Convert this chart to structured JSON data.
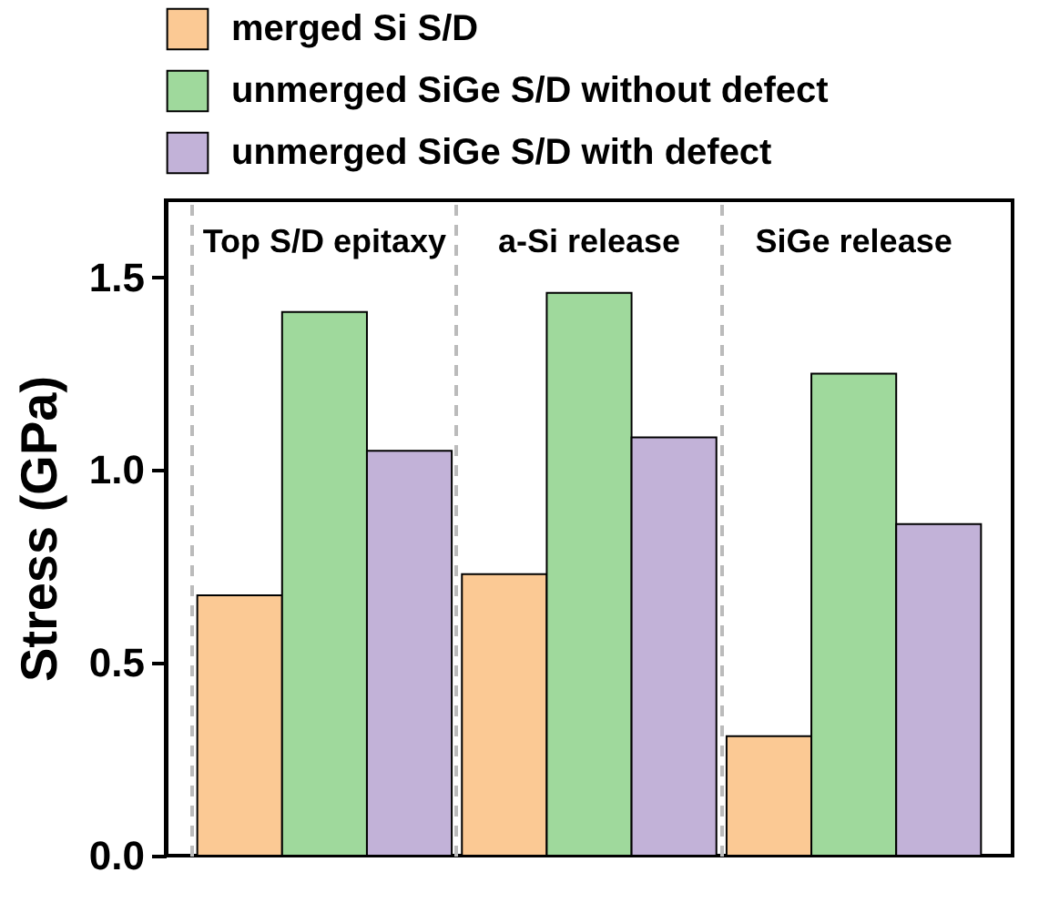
{
  "chart_data": {
    "type": "bar",
    "ylabel": "Stress (GPa)",
    "categories": [
      "Top S/D epitaxy",
      "a-Si release",
      "SiGe release"
    ],
    "series": [
      {
        "name": "merged Si S/D",
        "color": "#fbc994",
        "values": [
          0.675,
          0.73,
          0.31
        ]
      },
      {
        "name": "unmerged SiGe S/D without defect",
        "color": "#9fd99c",
        "values": [
          1.41,
          1.46,
          1.25
        ]
      },
      {
        "name": "unmerged SiGe S/D with defect",
        "color": "#c2b2d8",
        "values": [
          1.05,
          1.085,
          0.86
        ]
      }
    ],
    "ylim": [
      0,
      1.7
    ],
    "yticks": [
      {
        "value": 0,
        "label": "0.0"
      },
      {
        "value": 0.5,
        "label": "0.5"
      },
      {
        "value": 1,
        "label": "1.0"
      },
      {
        "value": 1.5,
        "label": "1.5"
      }
    ],
    "legend": "top",
    "grid": "x"
  }
}
